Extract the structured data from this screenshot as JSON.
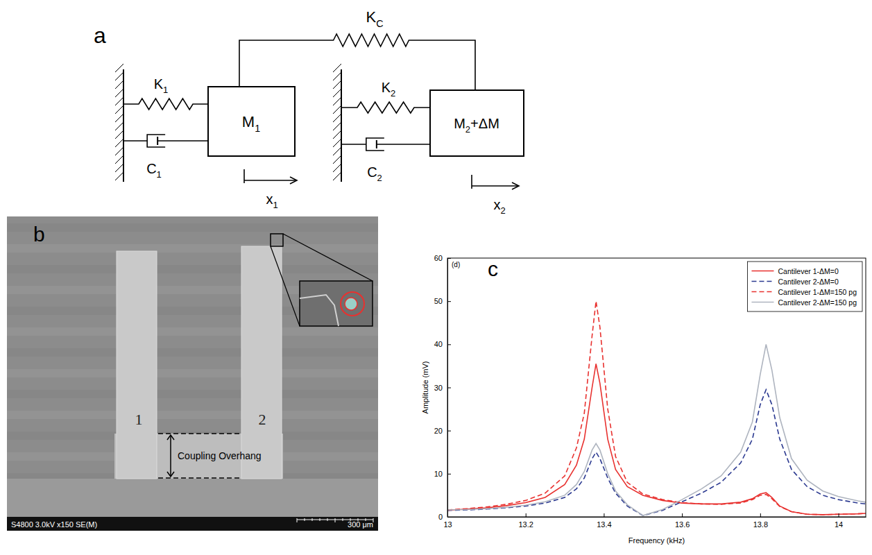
{
  "panel_labels": [
    "a",
    "b",
    "c"
  ],
  "diagram": {
    "coupling_spring": {
      "base": "K",
      "sub": "C"
    },
    "spring_1": {
      "base": "K",
      "sub": "1"
    },
    "mass_1": {
      "base": "M",
      "sub": "1"
    },
    "damper_1": {
      "base": "C",
      "sub": "1"
    },
    "displacement_1": {
      "base": "x",
      "sub": "1"
    },
    "spring_2": {
      "base": "K",
      "sub": "2"
    },
    "mass_2": {
      "base": "M",
      "sub": "2",
      "suffix": "+ΔM"
    },
    "damper_2": {
      "base": "C",
      "sub": "2"
    },
    "displacement_2": {
      "base": "x",
      "sub": "2"
    }
  },
  "image": {
    "cantilever_labels": [
      "1",
      "2"
    ],
    "dimension_label": "Coupling Overhang",
    "info_bar": "S4800 3.0kV x150 SE(M)",
    "scale_bar": "300 μm"
  },
  "chart_data": {
    "type": "line",
    "annotations": [
      "(d)"
    ],
    "x_label": "Frequency (kHz)",
    "y_label": "Amplitude (mV)",
    "x": [
      13,
      13.05,
      13.1,
      13.15,
      13.2,
      13.25,
      13.3,
      13.33,
      13.35,
      13.37,
      13.38,
      13.39,
      13.41,
      13.43,
      13.46,
      13.5,
      13.55,
      13.6,
      13.65,
      13.7,
      13.75,
      13.78,
      13.8,
      13.815,
      13.83,
      13.85,
      13.88,
      13.92,
      13.96,
      14,
      14.05,
      14.07
    ],
    "series": [
      {
        "name": "Cantilever 1-ΔM=0",
        "color": "#e8312f",
        "line_style": "solid",
        "values": [
          1.5,
          1.8,
          2.1,
          2.6,
          3.3,
          4.5,
          7.5,
          12,
          18,
          30,
          35.5,
          31,
          18,
          11,
          7,
          5,
          3.8,
          3.2,
          3,
          3,
          3.4,
          4.2,
          5.3,
          5.6,
          4.5,
          2.5,
          1.2,
          0.6,
          0.5,
          0.6,
          0.7,
          0.8
        ]
      },
      {
        "name": "Cantilever 2-ΔM=0",
        "color": "#2b3990",
        "line_style": "dashed",
        "values": [
          1.5,
          1.6,
          1.8,
          2.1,
          2.5,
          3.2,
          4.5,
          6.5,
          9,
          13.5,
          15,
          13.5,
          9,
          5.5,
          2.5,
          0.3,
          1.5,
          3.5,
          5.5,
          8,
          12.5,
          18,
          26,
          29.5,
          26,
          18,
          11,
          7,
          5,
          4,
          3.2,
          3
        ]
      },
      {
        "name": "Cantilever 1-ΔM=150 pg",
        "color": "#e8312f",
        "line_style": "dashed",
        "values": [
          1.6,
          1.9,
          2.3,
          2.9,
          3.8,
          5.5,
          9.5,
          16,
          24,
          42,
          50,
          44,
          25,
          14,
          8,
          5.3,
          4,
          3.3,
          3,
          2.9,
          3.2,
          4,
          5,
          5.2,
          4.2,
          2.4,
          1.2,
          0.6,
          0.5,
          0.6,
          0.7,
          0.8
        ]
      },
      {
        "name": "Cantilever 2-ΔM=150 pg",
        "color": "#aeb4bf",
        "line_style": "solid",
        "values": [
          1.6,
          1.7,
          1.9,
          2.2,
          2.7,
          3.5,
          5,
          7.5,
          10.5,
          15.5,
          17,
          15.5,
          10,
          6,
          2.8,
          0.3,
          1.7,
          4,
          6.5,
          9.5,
          15,
          22,
          33,
          40,
          34,
          23,
          13.5,
          8.5,
          6,
          4.7,
          3.7,
          3.4
        ]
      }
    ],
    "xlim": [
      13,
      14.07
    ],
    "ylim": [
      0,
      60
    ],
    "xticks": [
      13,
      13.2,
      13.4,
      13.6,
      13.8,
      14
    ],
    "yticks": [
      0,
      10,
      20,
      30,
      40,
      50,
      60
    ],
    "grid": false,
    "legend": "top-right"
  }
}
